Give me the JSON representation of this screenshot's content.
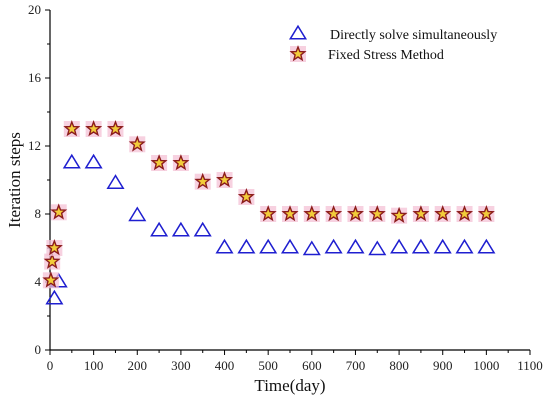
{
  "colors": {
    "triangle_stroke": "#1f1fd0",
    "star_stroke": "#8b1c1c",
    "star_fill": "#f2cc3a",
    "star_halo": "#f4c2d6",
    "axis": "#000000"
  },
  "chart_data": {
    "type": "scatter",
    "xlabel": "Time(day)",
    "ylabel": "Iteration steps",
    "xlim": [
      0,
      1100
    ],
    "ylim": [
      0,
      20
    ],
    "xticks": [
      0,
      100,
      200,
      300,
      400,
      500,
      600,
      700,
      800,
      900,
      1000,
      1100
    ],
    "yticks": [
      0,
      4,
      8,
      12,
      16,
      20
    ],
    "xtick_labels": [
      "0",
      "100",
      "200",
      "300",
      "400",
      "500",
      "600",
      "700",
      "800",
      "900",
      "1000",
      "1100"
    ],
    "ytick_labels": [
      "0",
      "4",
      "8",
      "12",
      "16",
      "20"
    ],
    "grid": false,
    "legend_position": "top-right",
    "series": [
      {
        "name": "Directly solve simultaneously",
        "marker": "triangle",
        "x": [
          10,
          20,
          50,
          100,
          150,
          200,
          250,
          300,
          350,
          400,
          450,
          500,
          550,
          600,
          650,
          700,
          750,
          800,
          850,
          900,
          950,
          1000
        ],
        "y": [
          3,
          4,
          11,
          11,
          9.8,
          7.9,
          7,
          7,
          7,
          6,
          6,
          6,
          6,
          5.9,
          6,
          6,
          5.9,
          6,
          6,
          6,
          6,
          6
        ]
      },
      {
        "name": "Fixed Stress Method",
        "marker": "star",
        "x": [
          2,
          5,
          10,
          20,
          50,
          100,
          150,
          200,
          250,
          300,
          350,
          400,
          450,
          500,
          550,
          600,
          650,
          700,
          750,
          800,
          850,
          900,
          950,
          1000
        ],
        "y": [
          4.1,
          5.2,
          6,
          8.1,
          13,
          13,
          13,
          12.1,
          11,
          11,
          9.9,
          10,
          9,
          8,
          8,
          8,
          8,
          8,
          8,
          7.9,
          8,
          8,
          8,
          8
        ]
      }
    ]
  }
}
